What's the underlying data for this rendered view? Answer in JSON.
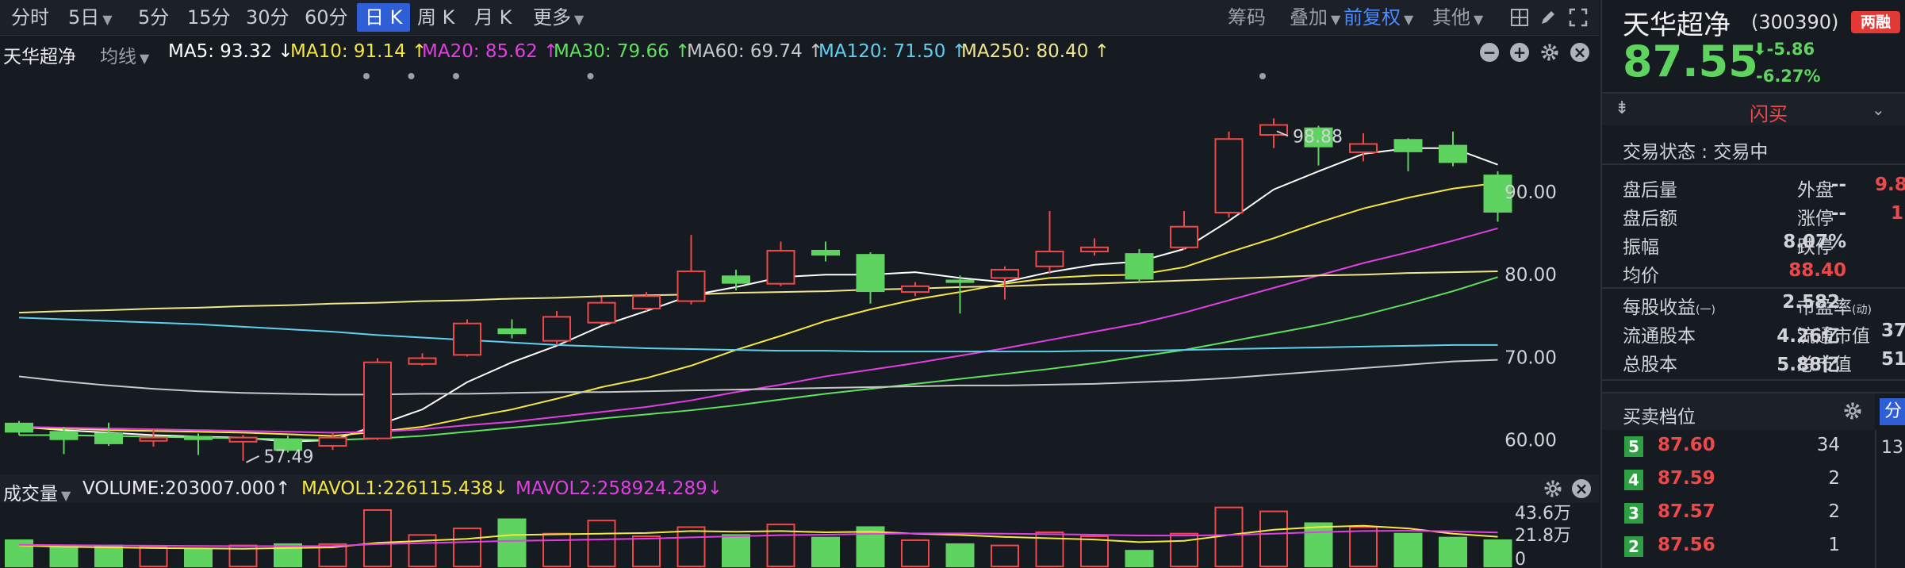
{
  "toolbar": {
    "intervals": [
      "分时",
      "5日",
      "5分",
      "15分",
      "30分",
      "60分",
      "日 K",
      "周 K",
      "月 K",
      "更多"
    ],
    "active": "日 K",
    "right": {
      "chips": "筹码",
      "overlay": "叠加",
      "adjust": "前复权",
      "other": "其他"
    }
  },
  "ma_bar": {
    "stock": "天华超净",
    "line_mode": "均线",
    "ma5": "MA5: 93.32 ↓",
    "ma10": "MA10: 91.14 ↑",
    "ma20": "MA20: 85.62 ↑",
    "ma30": "MA30: 79.66 ↑",
    "ma60": "MA60: 69.74 ↑",
    "ma120": "MA120: 71.50 ↑",
    "ma250": "MA250: 80.40 ↑"
  },
  "colors": {
    "up": "#f04848",
    "down": "#5fd35f",
    "ma5": "#ffffff",
    "ma10": "#f5e642",
    "ma20": "#e040e0",
    "ma30": "#5fe05f",
    "ma60": "#c8c8c8",
    "ma120": "#5fd0f0",
    "ma250": "#f0e68c"
  },
  "chart_data": {
    "type": "candlestick",
    "ylim": [
      57,
      104
    ],
    "y_ticks": [
      "90.00",
      "80.00",
      "70.00",
      "60.00"
    ],
    "y_tick_values": [
      90,
      80,
      70,
      60
    ],
    "annotations": {
      "high": "98.88",
      "low": "57.49"
    },
    "high_value": 98.88,
    "low_value": 57.49,
    "candles": [
      {
        "o": 62.0,
        "c": 61.0,
        "h": 62.3,
        "l": 60.6
      },
      {
        "o": 61.0,
        "c": 60.1,
        "h": 61.6,
        "l": 58.3
      },
      {
        "o": 60.8,
        "c": 59.6,
        "h": 62.1,
        "l": 59.3
      },
      {
        "o": 59.9,
        "c": 60.3,
        "h": 61.4,
        "l": 59.2
      },
      {
        "o": 60.4,
        "c": 60.1,
        "h": 60.8,
        "l": 58.2
      },
      {
        "o": 59.8,
        "c": 60.3,
        "h": 60.6,
        "l": 57.5
      },
      {
        "o": 60.1,
        "c": 58.8,
        "h": 60.5,
        "l": 58.5
      },
      {
        "o": 59.3,
        "c": 60.3,
        "h": 60.9,
        "l": 58.8
      },
      {
        "o": 60.2,
        "c": 69.4,
        "h": 69.9,
        "l": 60.0
      },
      {
        "o": 69.2,
        "c": 69.9,
        "h": 70.5,
        "l": 69.0
      },
      {
        "o": 70.3,
        "c": 74.1,
        "h": 74.6,
        "l": 70.1
      },
      {
        "o": 73.4,
        "c": 72.9,
        "h": 74.6,
        "l": 72.3
      },
      {
        "o": 72.0,
        "c": 74.9,
        "h": 75.6,
        "l": 71.5
      },
      {
        "o": 74.2,
        "c": 76.6,
        "h": 77.3,
        "l": 73.9
      },
      {
        "o": 75.9,
        "c": 77.4,
        "h": 77.9,
        "l": 75.6
      },
      {
        "o": 76.8,
        "c": 80.4,
        "h": 84.8,
        "l": 76.4
      },
      {
        "o": 79.8,
        "c": 79.0,
        "h": 80.6,
        "l": 78.1
      },
      {
        "o": 78.9,
        "c": 82.9,
        "h": 84.0,
        "l": 78.6
      },
      {
        "o": 82.9,
        "c": 82.4,
        "h": 84.0,
        "l": 81.6
      },
      {
        "o": 82.4,
        "c": 78.0,
        "h": 82.7,
        "l": 76.5
      },
      {
        "o": 77.9,
        "c": 78.6,
        "h": 79.1,
        "l": 77.4
      },
      {
        "o": 79.3,
        "c": 79.1,
        "h": 79.9,
        "l": 75.3
      },
      {
        "o": 79.6,
        "c": 80.6,
        "h": 81.0,
        "l": 77.0
      },
      {
        "o": 81.0,
        "c": 82.8,
        "h": 87.7,
        "l": 80.1
      },
      {
        "o": 82.8,
        "c": 83.3,
        "h": 84.4,
        "l": 82.3
      },
      {
        "o": 82.5,
        "c": 79.5,
        "h": 83.1,
        "l": 79.0
      },
      {
        "o": 83.3,
        "c": 85.8,
        "h": 87.7,
        "l": 83.0
      },
      {
        "o": 87.5,
        "c": 96.4,
        "h": 97.3,
        "l": 86.9
      },
      {
        "o": 96.9,
        "c": 98.1,
        "h": 98.9,
        "l": 95.3
      },
      {
        "o": 97.7,
        "c": 95.5,
        "h": 98.0,
        "l": 93.2
      },
      {
        "o": 94.8,
        "c": 95.8,
        "h": 97.1,
        "l": 93.7
      },
      {
        "o": 96.3,
        "c": 94.9,
        "h": 96.5,
        "l": 92.5
      },
      {
        "o": 95.6,
        "c": 93.6,
        "h": 97.3,
        "l": 93.1
      },
      {
        "o": 92.0,
        "c": 87.6,
        "h": 92.5,
        "l": 86.4
      }
    ],
    "ma_lines": {
      "ma5": [
        61.6,
        61.2,
        60.9,
        60.6,
        60.4,
        60.3,
        59.8,
        60.0,
        61.8,
        63.7,
        67.0,
        69.4,
        71.4,
        73.8,
        75.6,
        77.5,
        78.5,
        79.7,
        80.0,
        80.0,
        80.3,
        79.6,
        79.1,
        80.3,
        81.2,
        81.6,
        83.1,
        86.5,
        90.3,
        92.5,
        94.6,
        95.3,
        95.3,
        93.3
      ],
      "ma10": [
        61.5,
        61.4,
        61.2,
        61.1,
        61.0,
        60.9,
        60.7,
        60.5,
        61.0,
        61.6,
        62.7,
        63.7,
        65.0,
        66.4,
        67.5,
        69.0,
        70.9,
        72.6,
        74.4,
        75.8,
        77.0,
        77.9,
        78.9,
        79.6,
        79.9,
        80.0,
        80.9,
        82.7,
        84.4,
        86.3,
        88.0,
        89.3,
        90.4,
        91.1
      ],
      "ma20": [
        61.6,
        61.5,
        61.4,
        61.3,
        61.2,
        61.1,
        61.0,
        60.9,
        61.0,
        61.3,
        61.8,
        62.2,
        62.8,
        63.4,
        64.0,
        64.8,
        65.8,
        66.7,
        67.7,
        68.5,
        69.3,
        70.2,
        71.1,
        72.1,
        73.1,
        74.1,
        75.4,
        76.9,
        78.4,
        79.9,
        81.4,
        82.7,
        84.1,
        85.6
      ],
      "ma30": [
        60.6,
        60.6,
        60.5,
        60.4,
        60.3,
        60.2,
        60.1,
        60.0,
        60.2,
        60.5,
        61.0,
        61.5,
        62.0,
        62.6,
        63.1,
        63.6,
        64.2,
        64.9,
        65.6,
        66.2,
        66.8,
        67.4,
        68.0,
        68.6,
        69.3,
        70.1,
        70.9,
        71.9,
        72.9,
        73.9,
        75.1,
        76.5,
        78.0,
        79.7
      ],
      "ma60": [
        67.7,
        67.1,
        66.6,
        66.2,
        65.9,
        65.7,
        65.6,
        65.5,
        65.5,
        65.6,
        65.6,
        65.7,
        65.8,
        65.8,
        65.9,
        66.0,
        66.1,
        66.2,
        66.3,
        66.4,
        66.5,
        66.6,
        66.6,
        66.7,
        66.8,
        67.0,
        67.2,
        67.5,
        67.9,
        68.3,
        68.7,
        69.1,
        69.5,
        69.7
      ],
      "ma120": [
        74.8,
        74.6,
        74.4,
        74.2,
        74.0,
        73.7,
        73.4,
        73.1,
        72.7,
        72.4,
        72.1,
        71.8,
        71.5,
        71.3,
        71.1,
        71.0,
        70.9,
        70.8,
        70.8,
        70.7,
        70.7,
        70.7,
        70.7,
        70.7,
        70.8,
        70.8,
        70.9,
        71.0,
        71.1,
        71.2,
        71.3,
        71.4,
        71.5,
        71.5
      ],
      "ma250": [
        75.4,
        75.6,
        75.7,
        75.9,
        76.0,
        76.2,
        76.3,
        76.5,
        76.6,
        76.8,
        76.9,
        77.1,
        77.2,
        77.4,
        77.5,
        77.6,
        77.8,
        77.9,
        78.0,
        78.2,
        78.3,
        78.5,
        78.6,
        78.8,
        78.9,
        79.1,
        79.3,
        79.5,
        79.7,
        79.9,
        80.0,
        80.2,
        80.3,
        80.4
      ]
    },
    "volume": {
      "ylim": [
        0,
        460000
      ],
      "ticks": [
        "43.6万",
        "21.8万",
        "0"
      ],
      "tick_values": [
        436000,
        218000,
        0
      ],
      "bars": [
        200000,
        150000,
        160000,
        150000,
        130000,
        160000,
        170000,
        170000,
        430000,
        240000,
        290000,
        360000,
        250000,
        350000,
        230000,
        300000,
        240000,
        320000,
        220000,
        300000,
        200000,
        170000,
        160000,
        260000,
        230000,
        120000,
        250000,
        450000,
        420000,
        330000,
        300000,
        250000,
        220000,
        200000
      ],
      "mavol1": [
        160000,
        150000,
        145000,
        140000,
        138000,
        135000,
        140000,
        145000,
        180000,
        195000,
        210000,
        240000,
        245000,
        250000,
        255000,
        270000,
        265000,
        270000,
        260000,
        265000,
        250000,
        240000,
        225000,
        215000,
        205000,
        185000,
        195000,
        240000,
        280000,
        300000,
        310000,
        290000,
        250000,
        226115
      ],
      "mavol2": [
        165000,
        162000,
        160000,
        158000,
        156000,
        154000,
        155000,
        156000,
        170000,
        178000,
        186000,
        195000,
        200000,
        206000,
        212000,
        222000,
        230000,
        238000,
        242000,
        248000,
        252000,
        252000,
        250000,
        246000,
        242000,
        236000,
        235000,
        240000,
        250000,
        262000,
        270000,
        272000,
        268000,
        258924
      ]
    }
  },
  "vol_bar": {
    "title": "成交量",
    "volume": "VOLUME:203007.000↑",
    "mavol1": "MAVOL1:226115.438↓",
    "mavol2": "MAVOL2:258924.289↓"
  },
  "quote": {
    "name": "天华超净",
    "code": "(300390)",
    "badge": "两融",
    "price": "87.55",
    "change": "-5.86",
    "change_pct": "-6.27%",
    "flash_sell": "闪买",
    "status": "交易状态 : 交易中",
    "stats": [
      {
        "l1": "盘后量",
        "v1": "--",
        "l2": "外盘",
        "v2": "9.8"
      },
      {
        "l1": "盘后额",
        "v1": "--",
        "l2": "涨停",
        "v2": "1"
      },
      {
        "l1": "振幅",
        "v1": "8.07%",
        "l2": "跌停",
        "v2": ""
      },
      {
        "l1": "均价",
        "v1": "88.40",
        "l2": "",
        "v2": ""
      }
    ],
    "stats2": [
      {
        "l1": "每股收益",
        "sub1": "(一)",
        "v1": "2.582",
        "l2": "市盈率",
        "sub2": "(动)",
        "v2": ""
      },
      {
        "l1": "流通股本",
        "sub1": "",
        "v1": "4.26亿",
        "l2": "流通市值",
        "sub2": "",
        "v2": "37"
      },
      {
        "l1": "总股本",
        "sub1": "",
        "v1": "5.88亿",
        "l2": "总市值",
        "sub2": "",
        "v2": "51"
      }
    ],
    "orderbook_title": "买卖档位",
    "side_tab": "分",
    "side_time": "13:",
    "levels": [
      {
        "n": "5",
        "price": "87.60",
        "qty": "34"
      },
      {
        "n": "4",
        "price": "87.59",
        "qty": "2"
      },
      {
        "n": "3",
        "price": "87.57",
        "qty": "2"
      },
      {
        "n": "2",
        "price": "87.56",
        "qty": "1"
      }
    ]
  }
}
